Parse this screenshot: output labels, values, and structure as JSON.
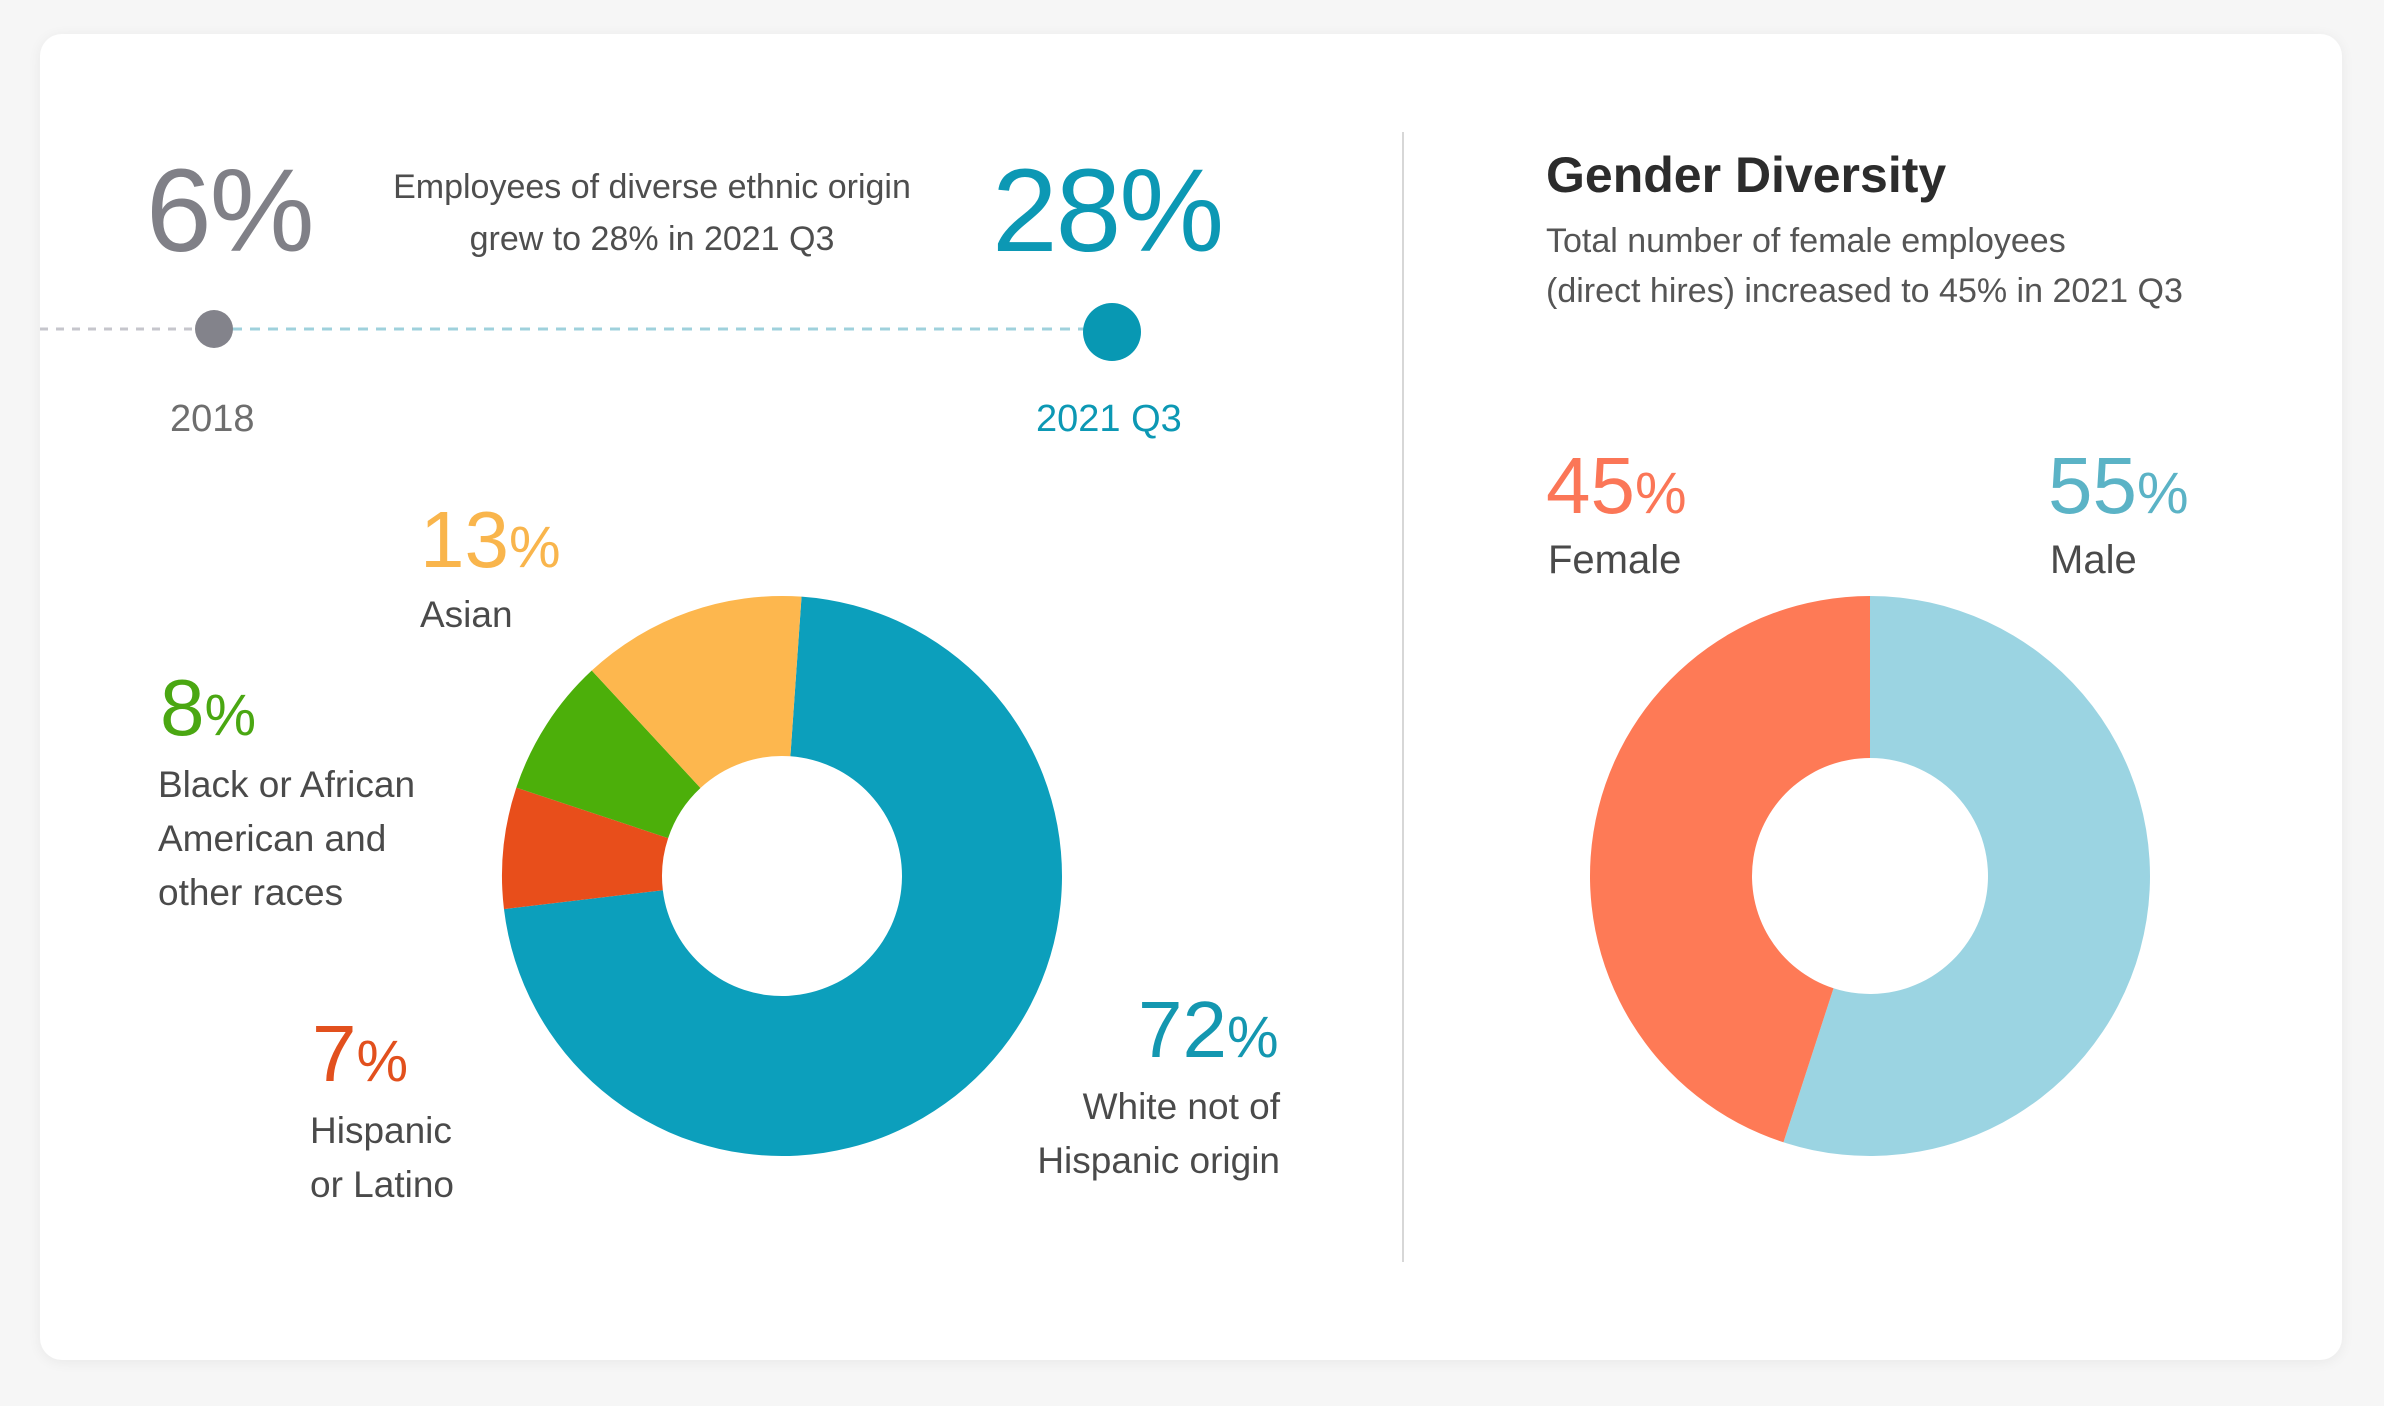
{
  "timeline": {
    "start_value": "6%",
    "start_label": "2018",
    "end_value": "28%",
    "end_label": "2021 Q3",
    "description_line1": "Employees of diverse ethnic origin",
    "description_line2": "grew to 28% in 2021 Q3"
  },
  "ethnic_labels": {
    "asian": {
      "num": "13",
      "sym": "%",
      "label": "Asian"
    },
    "black": {
      "num": "8",
      "sym": "%",
      "label_line1": "Black or African",
      "label_line2": "American and",
      "label_line3": "other races"
    },
    "hispanic": {
      "num": "7",
      "sym": "%",
      "label_line1": "Hispanic",
      "label_line2": "or Latino"
    },
    "white": {
      "num": "72",
      "sym": "%",
      "label_line1": "White not of",
      "label_line2": "Hispanic origin"
    }
  },
  "gender": {
    "title": "Gender Diversity",
    "subtitle_line1": "Total number of female employees",
    "subtitle_line2": "(direct hires) increased to 45% in 2021 Q3",
    "female": {
      "num": "45",
      "sym": "%",
      "label": "Female"
    },
    "male": {
      "num": "55",
      "sym": "%",
      "label": "Male"
    }
  },
  "chart_data": [
    {
      "type": "line",
      "x": [
        "2018",
        "2021 Q3"
      ],
      "values": [
        6,
        28
      ],
      "unit": "%",
      "colors": [
        "#8a8a92",
        "#0c98b4"
      ]
    },
    {
      "type": "pie",
      "donut": true,
      "categories": [
        "White not of Hispanic origin",
        "Hispanic or Latino",
        "Black or African American and other races",
        "Asian"
      ],
      "values": [
        72,
        7,
        8,
        13
      ],
      "unit": "%",
      "colors": [
        "#0c9fbc",
        "#e84e1b",
        "#4caf0a",
        "#fdb74e"
      ]
    },
    {
      "type": "pie",
      "donut": true,
      "title": "Gender Diversity",
      "categories": [
        "Male",
        "Female"
      ],
      "values": [
        55,
        45
      ],
      "unit": "%",
      "colors": [
        "#9bd4e2",
        "#fe7a56"
      ]
    }
  ]
}
